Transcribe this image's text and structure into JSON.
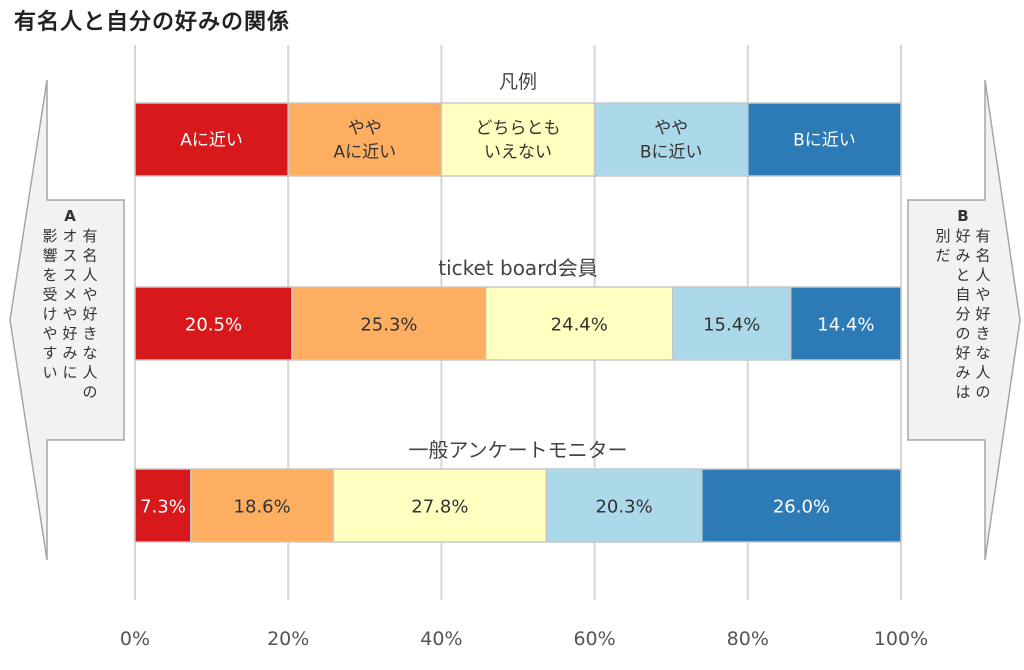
{
  "title": "有名人と自分の好みの関係",
  "legend_title": "凡例",
  "legend": [
    {
      "lines": [
        "Aに近い"
      ],
      "color": "#d7191c",
      "text_color": "#ffffff"
    },
    {
      "lines": [
        "やや",
        "Aに近い"
      ],
      "color": "#fdae61",
      "text_color": "#333333"
    },
    {
      "lines": [
        "どちらとも",
        "いえない"
      ],
      "color": "#ffffbf",
      "text_color": "#333333"
    },
    {
      "lines": [
        "やや",
        "Bに近い"
      ],
      "color": "#abd9e9",
      "text_color": "#333333"
    },
    {
      "lines": [
        "Bに近い"
      ],
      "color": "#2c7bb6",
      "text_color": "#ffffff"
    }
  ],
  "left_arrow": {
    "head": "A",
    "lines": [
      "有名人や好きな人の",
      "オススメや好みに",
      "影響を受けやすい"
    ]
  },
  "right_arrow": {
    "head": "B",
    "lines": [
      "有名人や好きな人の",
      "好みと自分の好みは",
      "別だ"
    ]
  },
  "chart_data": {
    "type": "bar",
    "orientation": "horizontal",
    "stacked": true,
    "percent": true,
    "title": "有名人と自分の好みの関係",
    "xlim": [
      0,
      100
    ],
    "x_ticks": [
      "0%",
      "20%",
      "40%",
      "60%",
      "80%",
      "100%"
    ],
    "grid": true,
    "categories": [
      "ticket board会員",
      "一般アンケートモニター"
    ],
    "series": [
      {
        "name": "Aに近い",
        "values": [
          20.5,
          7.3
        ],
        "labels": [
          "20.5%",
          "7.3%"
        ]
      },
      {
        "name": "ややAに近い",
        "values": [
          25.3,
          18.6
        ],
        "labels": [
          "25.3%",
          "18.6%"
        ]
      },
      {
        "name": "どちらともいえない",
        "values": [
          24.4,
          27.8
        ],
        "labels": [
          "24.4%",
          "27.8%"
        ]
      },
      {
        "name": "ややBに近い",
        "values": [
          15.4,
          20.3
        ],
        "labels": [
          "15.4%",
          "20.3%"
        ]
      },
      {
        "name": "Bに近い",
        "values": [
          14.4,
          26.0
        ],
        "labels": [
          "14.4%",
          "26.0%"
        ]
      }
    ]
  }
}
